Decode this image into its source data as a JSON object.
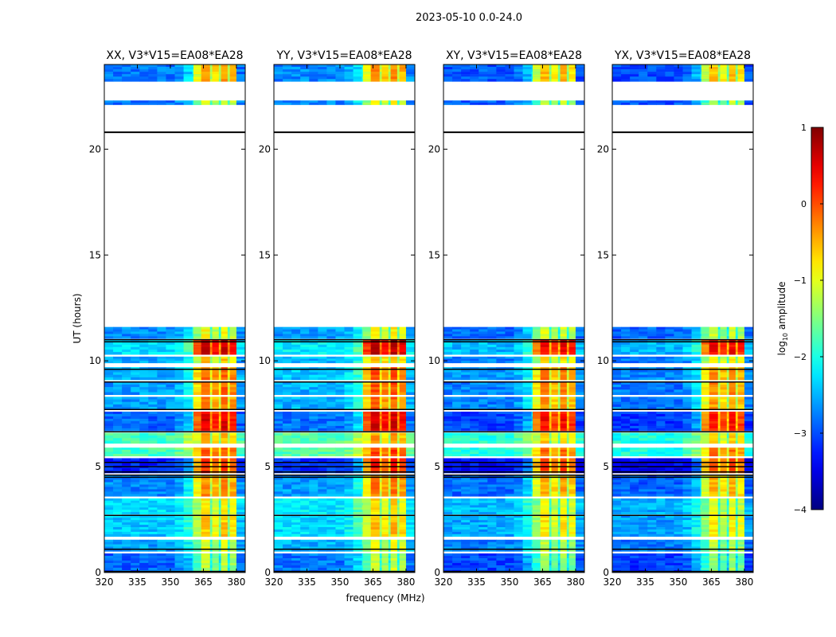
{
  "chart_data": {
    "type": "heatmap",
    "title": "2023-05-10 0.0-24.0",
    "xlabel": "frequency (MHz)",
    "ylabel": "UT (hours)",
    "xlim": [
      320,
      384
    ],
    "ylim": [
      0,
      24
    ],
    "xticks": [
      320,
      335,
      350,
      365,
      380
    ],
    "yticks": [
      0,
      5,
      10,
      15,
      20
    ],
    "panels": [
      {
        "title": "XX, V3*V15=EA08*EA28",
        "offset": 0
      },
      {
        "title": "YY, V3*V15=EA08*EA28",
        "offset": 0.1
      },
      {
        "title": "XY, V3*V15=EA08*EA28",
        "offset": -0.15
      },
      {
        "title": "YX, V3*V15=EA08*EA28",
        "offset": -0.2
      }
    ],
    "bright_band_columns": [
      [
        360.5,
        364,
        -0.6
      ],
      [
        364,
        368,
        0
      ],
      [
        368,
        369,
        -0.9
      ],
      [
        369,
        372,
        -0.3
      ],
      [
        372,
        373,
        -1.0
      ],
      [
        373,
        376,
        0
      ],
      [
        376,
        377,
        -0.9
      ],
      [
        377,
        380,
        -0.2
      ]
    ],
    "time_segments": [
      [
        0.0,
        0.9,
        -2.9,
        -1.2
      ],
      [
        1.0,
        1.55,
        -2.6,
        -1.0
      ],
      [
        1.7,
        2.7,
        -2.4,
        -0.6
      ],
      [
        2.75,
        3.5,
        -2.3,
        -0.8
      ],
      [
        3.6,
        4.6,
        -2.7,
        -0.3
      ],
      [
        4.7,
        5.4,
        -3.2,
        0.2
      ],
      [
        5.5,
        5.9,
        -1.8,
        0.0
      ],
      [
        6.1,
        6.6,
        -1.8,
        -0.5
      ],
      [
        6.7,
        7.6,
        -2.9,
        0.5
      ],
      [
        7.7,
        8.3,
        -2.6,
        -0.2
      ],
      [
        8.4,
        9.0,
        -2.6,
        -0.1
      ],
      [
        9.1,
        9.7,
        -2.5,
        -0.1
      ],
      [
        9.9,
        10.2,
        -2.6,
        -0.6
      ],
      [
        10.3,
        11.0,
        -2.3,
        0.6
      ],
      [
        11.05,
        11.6,
        -2.7,
        -0.9
      ],
      [
        22.1,
        22.3,
        -2.8,
        -1.0
      ],
      [
        23.2,
        24.0,
        -2.8,
        -0.4
      ]
    ],
    "scan_boundaries": [
      0.05,
      1.1,
      2.7,
      4.5,
      4.6,
      4.75,
      5.0,
      5.2,
      6.65,
      7.7,
      9.0,
      9.6,
      10.9,
      11.0,
      20.8
    ],
    "colorbar": {
      "label": "log10 amplitude",
      "label_main": "log",
      "label_sub": "10",
      "label_rest": " amplitude",
      "range": [
        -4,
        1
      ],
      "ticks": [
        -4,
        -3,
        -2,
        -1,
        0,
        1
      ]
    }
  }
}
